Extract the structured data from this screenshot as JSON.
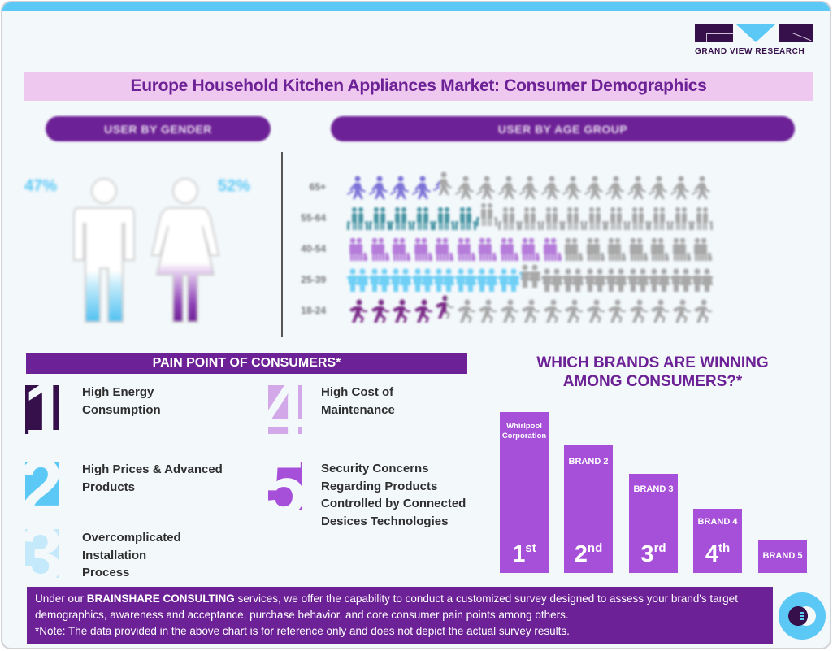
{
  "logo": {
    "text": "GRAND VIEW RESEARCH"
  },
  "title": "Europe Household Kitchen Appliances Market: Consumer Demographics",
  "sections": {
    "gender_header": "USER BY GENDER",
    "age_header": "USER BY AGE GROUP",
    "pain_header": "PAIN POINT OF CONSUMERS*",
    "brands_title_line1": "WHICH BRANDS ARE WINNING",
    "brands_title_line2": "AMONG CONSUMERS?*"
  },
  "colors": {
    "purple": "#6d2196",
    "light_purple": "#a64fd9",
    "sky": "#5bc8f5",
    "dark": "#36104a",
    "grey_icon": "#a8a8a8"
  },
  "pain_points": [
    {
      "number": "1",
      "text_lines": [
        "High Energy",
        "Consumption"
      ],
      "color": "#36104a"
    },
    {
      "number": "2",
      "text_lines": [
        "High Prices & Advanced",
        "Products"
      ],
      "color": "#5bc8f5"
    },
    {
      "number": "3",
      "text_lines": [
        "Overcomplicated",
        "Installation",
        "Process"
      ],
      "color": "#c3e9fa"
    },
    {
      "number": "4",
      "text_lines": [
        "High Cost of",
        "Maintenance"
      ],
      "color": "#d2a8e8"
    },
    {
      "number": "5",
      "text_lines": [
        "Security Concerns",
        "Regarding Products",
        "Controlled by Connected",
        "Desices Technologies"
      ],
      "color": "#a64fd9"
    }
  ],
  "footer": {
    "prefix": "Under our ",
    "bold": "BRAINSHARE CONSULTING",
    "rest": " services, we offer the capability to conduct a customized survey designed to assess your brand's target demographics, awareness and acceptance, purchase behavior, and core consumer pain points among others.",
    "note": "*Note: The data provided in the above chart is for reference only and does not depict the actual survey results."
  },
  "chart_data": [
    {
      "type": "bar",
      "title": "USER BY GENDER",
      "categories": [
        "Male",
        "Female"
      ],
      "values": [
        47,
        52
      ],
      "labels": [
        "47%",
        "52%"
      ],
      "colors": [
        "#5bc8f5",
        "#6d2196"
      ]
    },
    {
      "type": "bar",
      "title": "USER BY AGE GROUP",
      "orientation": "horizontal",
      "categories": [
        "65+",
        "55-64",
        "40-54",
        "25-39",
        "18-24"
      ],
      "icons_total": 17,
      "values_icons_filled": [
        4.3,
        6.2,
        10,
        8.1,
        4.6
      ],
      "colors": [
        "#7b73d6",
        "#4a96a4",
        "#b57cd9",
        "#6fcff5",
        "#7a2a86"
      ],
      "pictogram_styles": [
        "walking-elderly",
        "family-holding-hands",
        "parent-with-child",
        "couple",
        "running"
      ]
    },
    {
      "type": "bar",
      "title": "WHICH BRANDS ARE WINNING AMONG CONSUMERS?*",
      "categories": [
        "Whirlpool Corporation",
        "BRAND 2",
        "BRAND 3",
        "BRAND 4",
        "BRAND 5"
      ],
      "ranks": [
        "1st",
        "2nd",
        "3rd",
        "4th",
        ""
      ],
      "rank_numbers": [
        "1",
        "2",
        "3",
        "4",
        ""
      ],
      "rank_suffixes": [
        "st",
        "nd",
        "rd",
        "th",
        ""
      ],
      "values": [
        198,
        158,
        122,
        79,
        41
      ],
      "note": "bar heights in px (ranking only, no axis)",
      "color": "#a64fd9"
    }
  ]
}
